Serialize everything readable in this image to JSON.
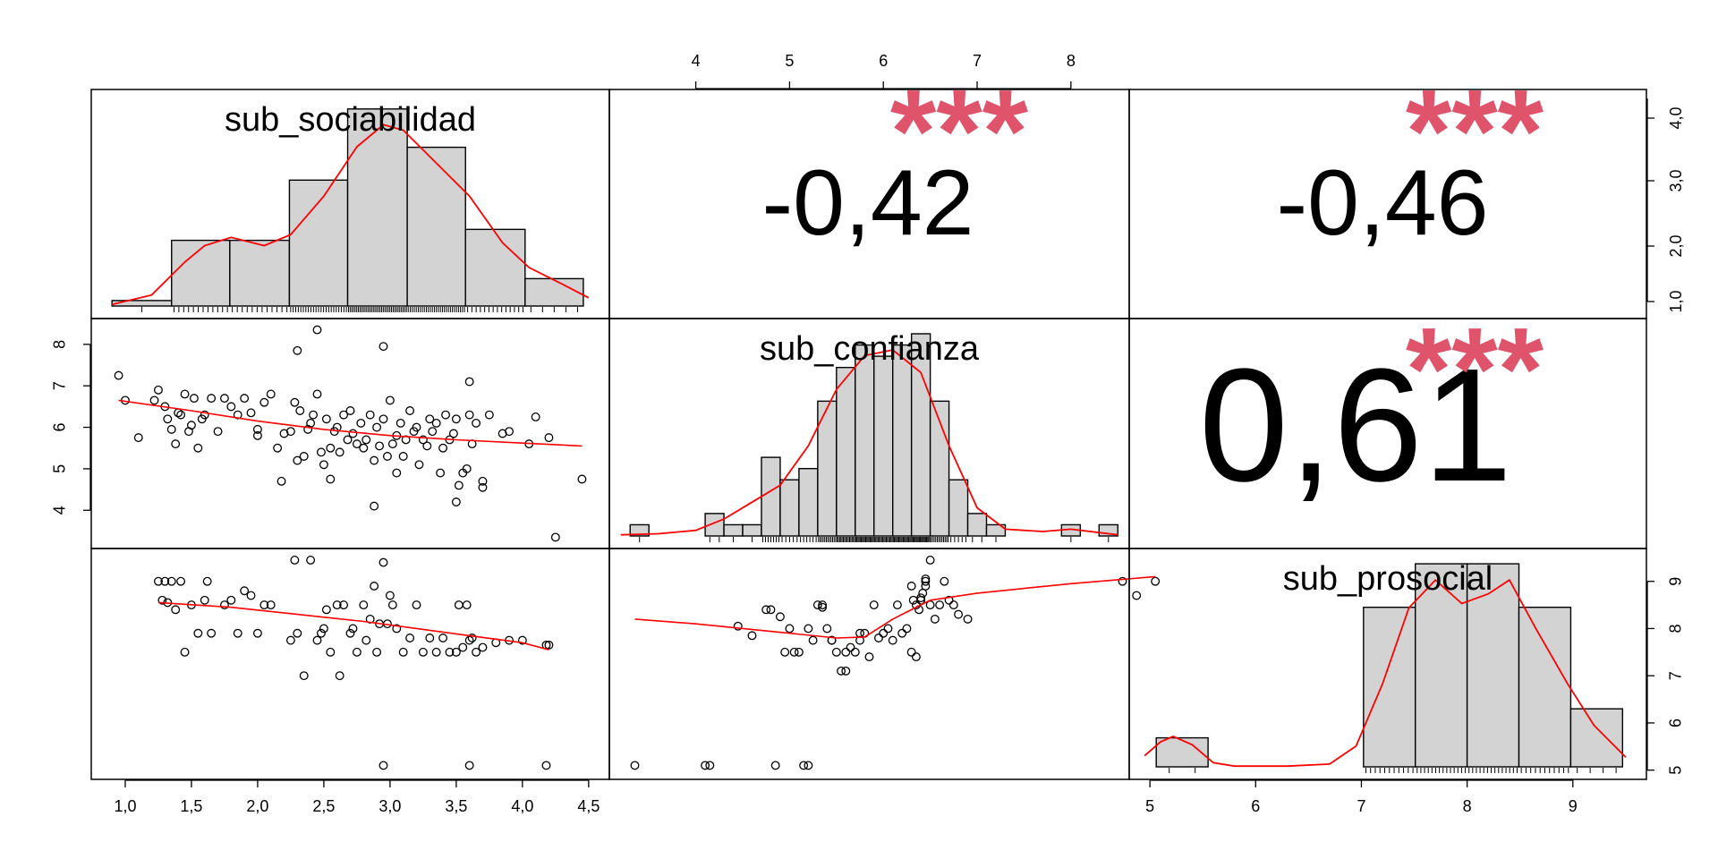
{
  "chart_data": {
    "type": "scatter",
    "variables": [
      "sub_sociabilidad",
      "sub_confianza",
      "sub_prosocial"
    ],
    "grid": false,
    "colors": {
      "bars": "#D3D3D3",
      "curves": "#FF0000",
      "stars": "#DF536B",
      "points": "#000000"
    },
    "axis_ticks": {
      "sub_sociabilidad": [
        "1,0",
        "1,5",
        "2,0",
        "2,5",
        "3,0",
        "3,5",
        "4,0",
        "4,5"
      ],
      "sub_confianza": [
        "4",
        "5",
        "6",
        "7",
        "8"
      ],
      "sub_prosocial": [
        "5",
        "6",
        "7",
        "8",
        "9"
      ],
      "hist_density_right": [
        "1,0",
        "2,0",
        "3,0",
        "4,0"
      ]
    },
    "axis_ranges": {
      "sub_sociabilidad": [
        0.9,
        4.5
      ],
      "sub_confianza": [
        3.3,
        8.4
      ],
      "sub_prosocial": [
        5.0,
        9.5
      ]
    },
    "correlations": [
      {
        "pair": [
          "sub_sociabilidad",
          "sub_confianza"
        ],
        "r": "-0,42",
        "stars": "***"
      },
      {
        "pair": [
          "sub_sociabilidad",
          "sub_prosocial"
        ],
        "r": "-0,46",
        "stars": "***"
      },
      {
        "pair": [
          "sub_confianza",
          "sub_prosocial"
        ],
        "r": "0,61",
        "stars": "***"
      }
    ],
    "histograms": {
      "sub_sociabilidad": {
        "label": "sub_sociabilidad",
        "breaks": [
          0.9,
          1.35,
          1.79,
          2.24,
          2.68,
          3.13,
          3.57,
          4.02,
          4.46
        ],
        "counts": [
          1,
          12,
          12,
          23,
          36,
          29,
          14,
          5
        ],
        "density_curve": [
          [
            0.9,
            0.3
          ],
          [
            1.2,
            2
          ],
          [
            1.45,
            8
          ],
          [
            1.6,
            11
          ],
          [
            1.8,
            12.5
          ],
          [
            2.05,
            11
          ],
          [
            2.25,
            13
          ],
          [
            2.5,
            20
          ],
          [
            2.75,
            29
          ],
          [
            2.95,
            33
          ],
          [
            3.1,
            32
          ],
          [
            3.35,
            26
          ],
          [
            3.6,
            20
          ],
          [
            3.85,
            11.5
          ],
          [
            4.05,
            7
          ],
          [
            4.3,
            4
          ],
          [
            4.5,
            1.5
          ]
        ]
      },
      "sub_confianza": {
        "label": "sub_confianza",
        "breaks": [
          3.3,
          3.5,
          3.7,
          3.9,
          4.1,
          4.3,
          4.5,
          4.7,
          4.9,
          5.1,
          5.3,
          5.5,
          5.7,
          5.9,
          6.1,
          6.3,
          6.5,
          6.7,
          6.9,
          7.1,
          7.3,
          7.5,
          7.7,
          7.9,
          8.1,
          8.3,
          8.5
        ],
        "counts": [
          1,
          0,
          0,
          0,
          2,
          1,
          1,
          7,
          5,
          6,
          12,
          15,
          17,
          16,
          17,
          18,
          12,
          5,
          2,
          1,
          0,
          0,
          0,
          1,
          0,
          1
        ],
        "density_curve": [
          [
            3.2,
            0.1
          ],
          [
            3.6,
            0.2
          ],
          [
            4.0,
            0.5
          ],
          [
            4.3,
            1.5
          ],
          [
            4.6,
            3
          ],
          [
            4.9,
            4.5
          ],
          [
            5.2,
            8
          ],
          [
            5.5,
            13
          ],
          [
            5.8,
            16
          ],
          [
            6.1,
            16.5
          ],
          [
            6.4,
            14.5
          ],
          [
            6.7,
            8
          ],
          [
            7.0,
            2.5
          ],
          [
            7.3,
            0.6
          ],
          [
            7.7,
            0.4
          ],
          [
            8.0,
            0.6
          ],
          [
            8.3,
            0.3
          ],
          [
            8.5,
            0.1
          ]
        ]
      },
      "sub_prosocial": {
        "label": "sub_prosocial",
        "breaks": [
          5.06,
          5.55,
          6.04,
          6.53,
          7.02,
          7.51,
          8.0,
          8.49,
          8.98,
          9.47
        ],
        "counts": [
          2,
          0,
          0,
          0,
          11,
          14,
          14,
          11,
          4
        ],
        "density_curve": [
          [
            4.95,
            0.8
          ],
          [
            5.1,
            1.8
          ],
          [
            5.22,
            2.2
          ],
          [
            5.4,
            1.6
          ],
          [
            5.6,
            0.3
          ],
          [
            5.8,
            0.05
          ],
          [
            6.3,
            0.05
          ],
          [
            6.7,
            0.2
          ],
          [
            6.95,
            1.5
          ],
          [
            7.2,
            6
          ],
          [
            7.45,
            11.5
          ],
          [
            7.7,
            13.5
          ],
          [
            7.95,
            11.8
          ],
          [
            8.2,
            12.5
          ],
          [
            8.4,
            13.5
          ],
          [
            8.65,
            10
          ],
          [
            8.95,
            6
          ],
          [
            9.2,
            3
          ],
          [
            9.5,
            0.7
          ]
        ]
      }
    },
    "scatter": {
      "sociabilidad_vs_confianza": {
        "x": [
          0.95,
          1.0,
          1.1,
          1.22,
          1.25,
          1.3,
          1.32,
          1.35,
          1.38,
          1.4,
          1.42,
          1.45,
          1.48,
          1.5,
          1.52,
          1.55,
          1.58,
          1.6,
          1.65,
          1.7,
          1.75,
          1.8,
          1.85,
          1.9,
          1.95,
          2.0,
          2.0,
          2.05,
          2.1,
          2.15,
          2.2,
          2.25,
          2.28,
          2.3,
          2.32,
          2.35,
          2.38,
          2.4,
          2.42,
          2.45,
          2.48,
          2.5,
          2.52,
          2.55,
          2.58,
          2.6,
          2.62,
          2.65,
          2.68,
          2.7,
          2.72,
          2.75,
          2.78,
          2.8,
          2.82,
          2.85,
          2.88,
          2.9,
          2.92,
          2.95,
          2.98,
          3.0,
          3.02,
          3.05,
          3.08,
          3.1,
          3.12,
          3.15,
          3.18,
          3.2,
          3.22,
          3.25,
          3.28,
          3.3,
          3.32,
          3.35,
          3.38,
          3.4,
          3.42,
          3.45,
          3.48,
          3.5,
          3.52,
          3.55,
          3.58,
          3.6,
          3.62,
          3.65,
          3.7,
          3.75,
          3.85,
          3.9,
          4.05,
          4.1,
          4.2,
          4.25,
          4.45,
          2.45,
          2.3,
          2.95,
          3.6,
          2.18,
          2.55,
          2.88,
          3.05,
          3.5,
          3.7
        ],
        "y": [
          7.25,
          6.65,
          5.75,
          6.65,
          6.9,
          6.5,
          6.2,
          5.95,
          5.6,
          6.35,
          6.3,
          6.8,
          5.9,
          6.05,
          6.7,
          5.5,
          6.2,
          6.3,
          6.7,
          5.9,
          6.7,
          6.5,
          6.3,
          6.7,
          6.35,
          5.95,
          5.8,
          6.6,
          6.8,
          5.5,
          5.85,
          5.9,
          6.6,
          5.2,
          6.4,
          5.3,
          5.95,
          6.1,
          6.3,
          6.8,
          5.4,
          5.1,
          6.2,
          5.5,
          5.9,
          6.0,
          5.4,
          6.3,
          5.7,
          6.4,
          5.85,
          5.6,
          6.1,
          5.5,
          5.7,
          6.3,
          5.2,
          6.0,
          5.55,
          6.2,
          5.3,
          6.65,
          5.6,
          4.9,
          6.1,
          5.3,
          5.7,
          6.4,
          5.9,
          6.0,
          5.1,
          5.7,
          5.55,
          6.2,
          5.9,
          6.1,
          4.9,
          5.5,
          6.3,
          5.7,
          5.85,
          6.2,
          4.6,
          4.9,
          5.0,
          6.3,
          5.6,
          6.1,
          4.7,
          6.3,
          5.85,
          5.9,
          5.6,
          6.25,
          5.75,
          3.35,
          4.75,
          8.35,
          7.85,
          7.95,
          7.1,
          4.7,
          4.75,
          4.1,
          5.8,
          4.2,
          4.55
        ],
        "fit_curve": [
          [
            0.95,
            6.65
          ],
          [
            1.5,
            6.4
          ],
          [
            2.0,
            6.15
          ],
          [
            2.5,
            5.95
          ],
          [
            3.0,
            5.8
          ],
          [
            3.5,
            5.7
          ],
          [
            4.0,
            5.62
          ],
          [
            4.45,
            5.55
          ]
        ]
      },
      "sociabilidad_vs_prosocial": {
        "x": [
          1.25,
          1.28,
          1.3,
          1.32,
          1.35,
          1.38,
          1.42,
          1.45,
          1.5,
          1.55,
          1.6,
          1.62,
          1.65,
          1.75,
          1.8,
          1.85,
          1.9,
          1.95,
          2.0,
          2.05,
          2.1,
          2.25,
          2.28,
          2.3,
          2.35,
          2.4,
          2.45,
          2.48,
          2.5,
          2.52,
          2.55,
          2.6,
          2.62,
          2.65,
          2.7,
          2.72,
          2.75,
          2.8,
          2.82,
          2.85,
          2.88,
          2.9,
          2.92,
          2.95,
          2.98,
          3.0,
          3.02,
          3.05,
          3.1,
          3.15,
          3.2,
          3.25,
          3.3,
          3.35,
          3.4,
          3.45,
          3.5,
          3.52,
          3.55,
          3.58,
          3.6,
          3.62,
          3.65,
          3.7,
          3.8,
          3.9,
          4.0,
          4.18,
          4.2,
          2.95,
          3.6,
          4.18
        ],
        "y": [
          9.0,
          8.6,
          9.0,
          8.55,
          9.0,
          8.4,
          9.0,
          7.5,
          8.5,
          7.9,
          8.6,
          9.0,
          7.9,
          8.5,
          8.6,
          7.9,
          8.8,
          8.7,
          7.9,
          8.5,
          8.5,
          7.75,
          9.45,
          7.9,
          7.0,
          9.45,
          7.75,
          7.9,
          8.0,
          8.4,
          7.5,
          8.5,
          7.0,
          8.5,
          7.9,
          8.0,
          7.5,
          8.5,
          7.75,
          8.2,
          8.9,
          7.5,
          8.1,
          9.4,
          8.1,
          8.7,
          8.5,
          8.0,
          7.5,
          7.8,
          8.5,
          7.5,
          7.8,
          7.5,
          7.8,
          7.5,
          7.5,
          8.5,
          7.6,
          8.5,
          7.75,
          7.8,
          7.5,
          7.6,
          7.7,
          7.75,
          7.75,
          7.65,
          7.65,
          5.1,
          5.1,
          5.1
        ],
        "fit_curve": [
          [
            1.25,
            8.55
          ],
          [
            1.8,
            8.45
          ],
          [
            2.3,
            8.3
          ],
          [
            2.8,
            8.15
          ],
          [
            3.2,
            8.0
          ],
          [
            3.6,
            7.85
          ],
          [
            4.0,
            7.7
          ],
          [
            4.2,
            7.55
          ]
        ]
      },
      "confianza_vs_prosocial": {
        "x": [
          3.35,
          4.1,
          4.15,
          4.85,
          5.15,
          5.2,
          4.45,
          4.6,
          4.8,
          4.9,
          5.0,
          5.05,
          5.1,
          5.2,
          5.25,
          5.3,
          5.35,
          5.4,
          5.45,
          5.5,
          5.55,
          5.6,
          5.65,
          5.7,
          5.75,
          5.8,
          5.85,
          5.9,
          5.95,
          6.0,
          6.05,
          6.1,
          6.15,
          6.2,
          6.25,
          6.3,
          6.32,
          6.35,
          6.38,
          6.4,
          6.42,
          6.45,
          6.5,
          6.55,
          6.6,
          6.65,
          6.7,
          6.75,
          6.8,
          6.9,
          4.75,
          4.95,
          5.35,
          5.45,
          5.6,
          5.75,
          6.3,
          6.35,
          6.45,
          6.5,
          8.55,
          8.7,
          8.9,
          6.4,
          6.45
        ],
        "y": [
          5.1,
          5.1,
          5.1,
          5.1,
          5.1,
          5.1,
          8.05,
          7.85,
          8.4,
          8.25,
          8.0,
          7.5,
          7.5,
          8.0,
          7.75,
          8.5,
          8.45,
          8.0,
          7.75,
          7.5,
          7.1,
          7.5,
          7.6,
          7.5,
          7.75,
          7.9,
          7.4,
          8.5,
          7.8,
          7.9,
          8.0,
          7.75,
          8.5,
          7.9,
          8.0,
          8.9,
          8.6,
          8.5,
          8.4,
          8.6,
          8.75,
          8.9,
          8.5,
          8.2,
          8.5,
          9.0,
          8.6,
          8.5,
          8.3,
          8.2,
          8.4,
          7.5,
          8.5,
          7.75,
          7.1,
          7.9,
          7.5,
          7.4,
          9.0,
          9.45,
          9.0,
          8.7,
          9.0,
          8.65,
          9.05
        ],
        "fit_curve": [
          [
            3.35,
            8.2
          ],
          [
            4.0,
            8.1
          ],
          [
            4.5,
            8.0
          ],
          [
            5.0,
            7.9
          ],
          [
            5.5,
            7.8
          ],
          [
            5.8,
            7.82
          ],
          [
            6.1,
            8.2
          ],
          [
            6.5,
            8.6
          ],
          [
            7.0,
            8.75
          ],
          [
            7.5,
            8.85
          ],
          [
            8.0,
            8.95
          ],
          [
            8.6,
            9.05
          ],
          [
            8.9,
            9.1
          ]
        ]
      }
    }
  }
}
